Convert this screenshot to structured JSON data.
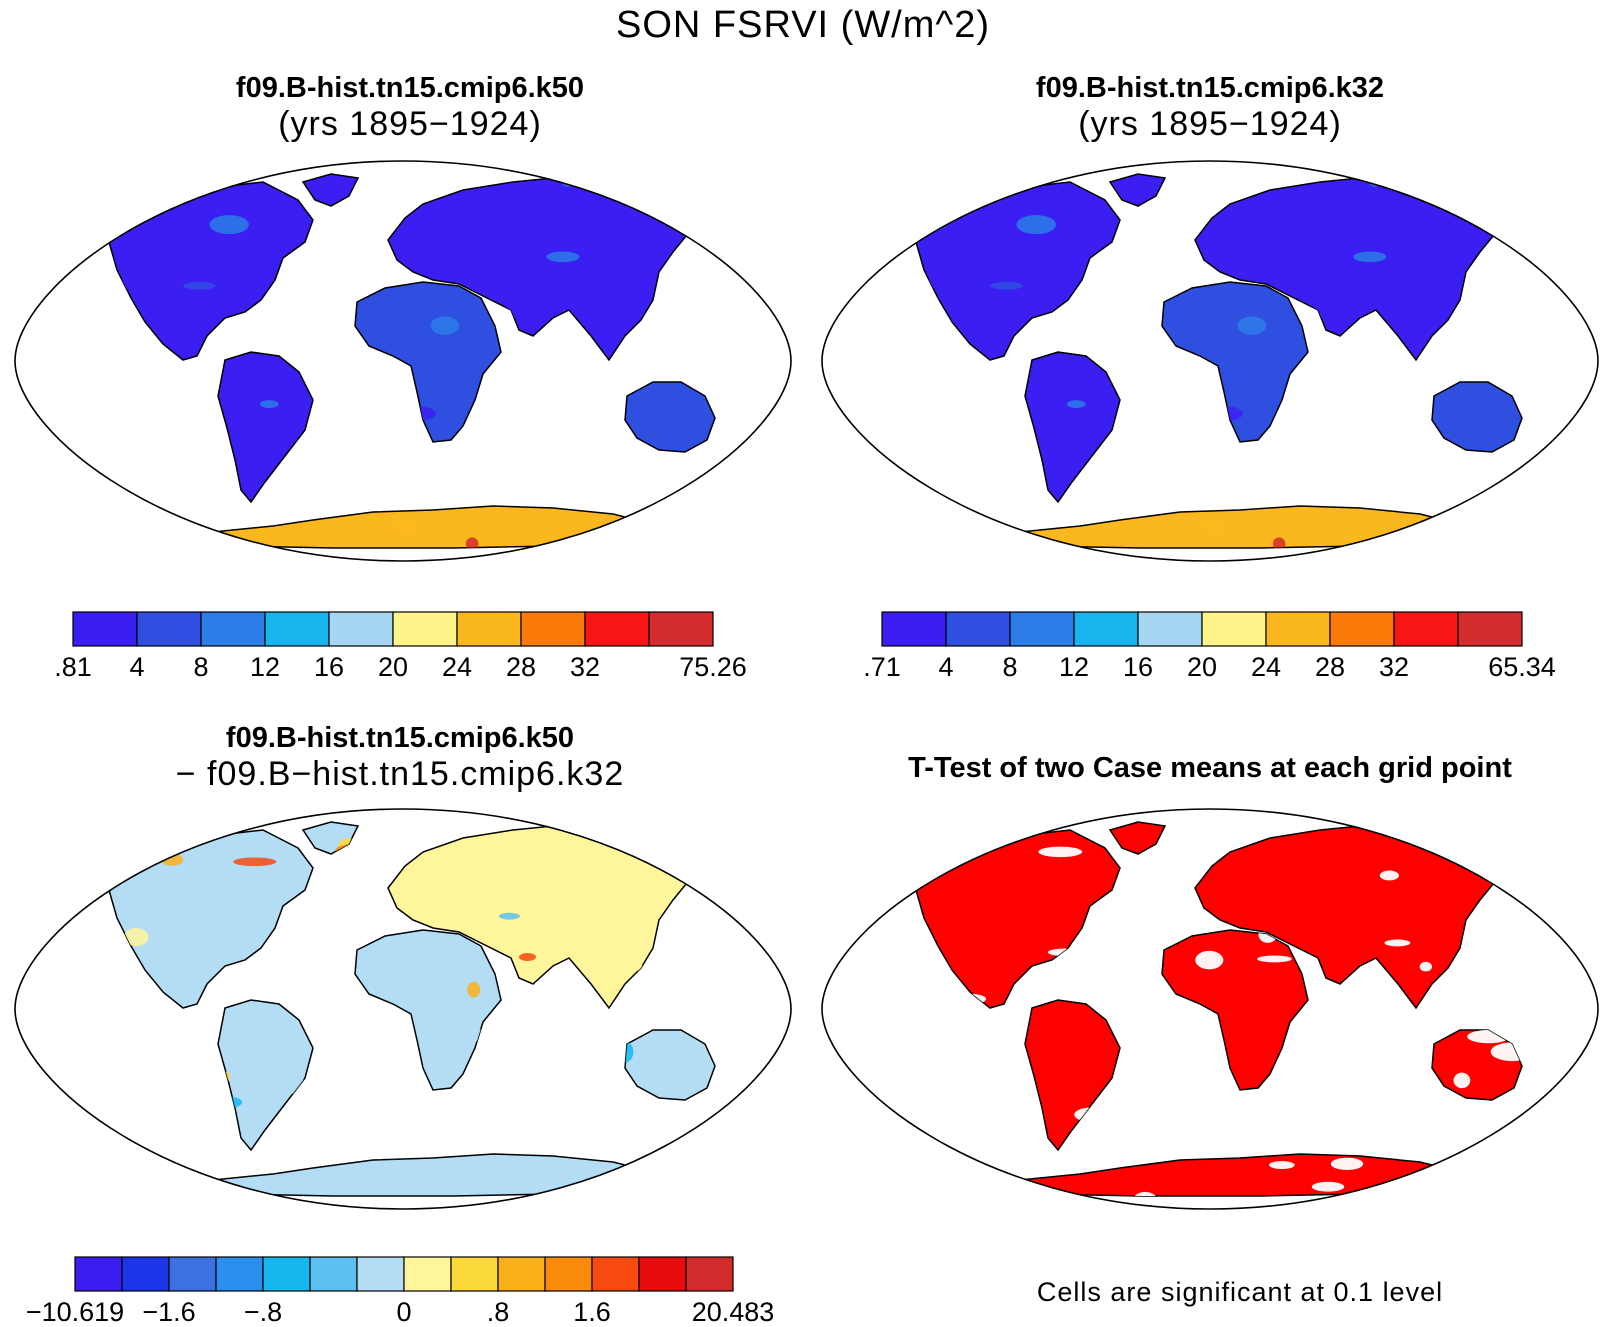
{
  "title": "SON FSRVI (W/m^2)",
  "panels": [
    {
      "id": "case1",
      "title_line1": "f09.B-hist.tn15.cmip6.k50",
      "title_line2": "(yrs 1895−1924)",
      "colorbar": {
        "colors": [
          "#3b1ff2",
          "#2e4fe0",
          "#2c7de8",
          "#18b4ee",
          "#a6d6f1",
          "#fff48a",
          "#fbb81e",
          "#fa7a0a",
          "#f81515",
          "#d42c2c"
        ],
        "labels": [
          ".81",
          "4",
          "8",
          "12",
          "16",
          "20",
          "24",
          "28",
          "32",
          "75.26"
        ]
      }
    },
    {
      "id": "case2",
      "title_line1": "f09.B-hist.tn15.cmip6.k32",
      "title_line2": "(yrs 1895−1924)",
      "colorbar": {
        "colors": [
          "#3b1ff2",
          "#2e4fe0",
          "#2c7de8",
          "#18b4ee",
          "#a6d6f1",
          "#fff48a",
          "#fbb81e",
          "#fa7a0a",
          "#f81515",
          "#d42c2c"
        ],
        "labels": [
          ".71",
          "4",
          "8",
          "12",
          "16",
          "20",
          "24",
          "28",
          "32",
          "65.34"
        ]
      }
    },
    {
      "id": "diff",
      "title_line1": "f09.B-hist.tn15.cmip6.k50",
      "title_line2": "− f09.B−hist.tn15.cmip6.k32",
      "colorbar": {
        "colors": [
          "#3b1ff2",
          "#1a35ea",
          "#3b72e0",
          "#2a8ff0",
          "#14b8ee",
          "#5ec0f0",
          "#b2ddf4",
          "#fff59a",
          "#fcd93a",
          "#fab01a",
          "#f98a0a",
          "#f84a0e",
          "#e80b0b",
          "#d32c2c"
        ],
        "labels": [
          "−10.619",
          "−1.6",
          "−.8",
          "0",
          ".8",
          "1.6",
          "20.483"
        ]
      }
    },
    {
      "id": "ttest",
      "title_line1": "T-Test of two Case means at each grid point",
      "note": "Cells are significant at 0.1 level"
    }
  ],
  "colors": {
    "significant": "#ff0000",
    "coast": "#000000"
  }
}
